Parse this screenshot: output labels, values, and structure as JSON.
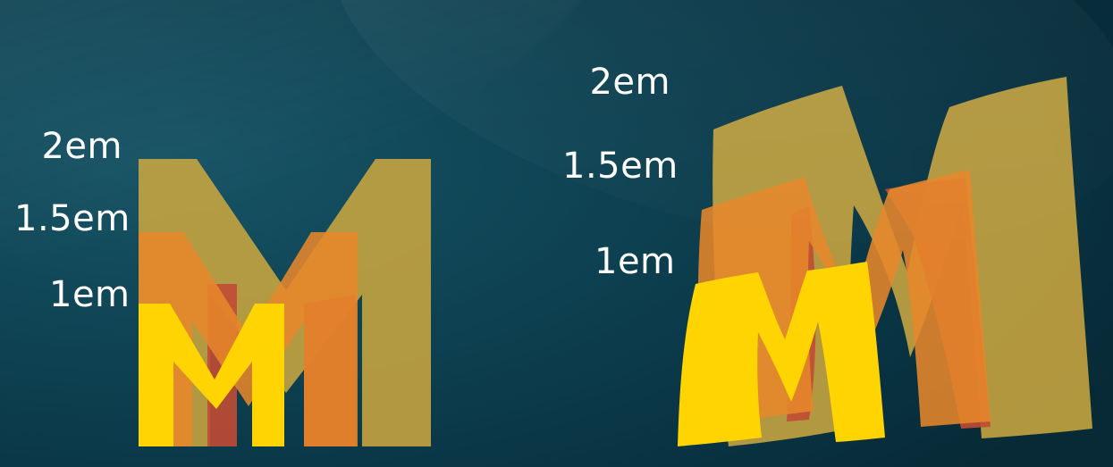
{
  "left_scale": {
    "labels": {
      "two_em": "2em",
      "one_half_em": "1.5em",
      "one_em": "1em"
    }
  },
  "right_scale": {
    "labels": {
      "two_em": "2em",
      "one_half_em": "1.5em",
      "one_em": "1em"
    }
  },
  "colors": {
    "background": "#0b3a4a",
    "m_2em": "#c9a640",
    "m_1_5em": "#e6862a",
    "m_1_5em_shadow": "#c14b35",
    "m_1em": "#ffd400",
    "text": "#ffffff"
  }
}
